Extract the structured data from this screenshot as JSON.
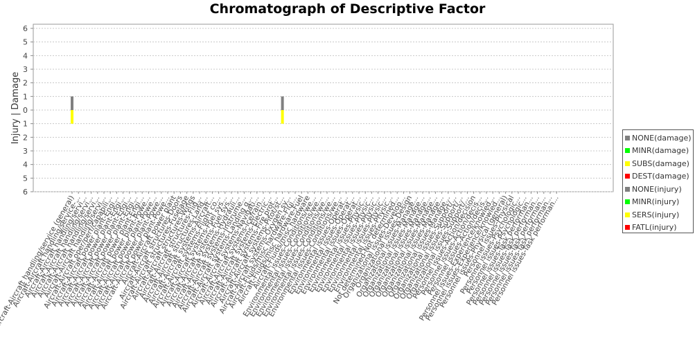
{
  "chart_data": {
    "type": "bar",
    "title": "Chromatograph of Descriptive Factor",
    "ylabel": "Injury | Damage",
    "xlabel": "",
    "ylim": [
      -6,
      6
    ],
    "yticks": [
      -6,
      -5,
      -4,
      -3,
      -2,
      -1,
      0,
      1,
      2,
      3,
      4,
      5,
      6
    ],
    "ytick_labels": [
      "6",
      "5",
      "4",
      "3",
      "2",
      "1",
      "0",
      "1",
      "2",
      "3",
      "4",
      "5",
      "6"
    ],
    "grid": true,
    "legend_position": "right",
    "categories": [
      "Aircraft-Aircraft handling/service (general)",
      "Aircraft-Aircraft handling/service-...",
      "Aircraft-Aircraft handling/servi...",
      "Aircraft-Aircraft handling/servi...",
      "Aircraft-Aircraft handling/servi...",
      "Aircraft-Aircraft handling/servi...",
      "Aircraft-Aircraft oper/perf/capabili...",
      "Aircraft-Aircraft power plant-Engi...",
      "Aircraft-Aircraft power plant-Engi...",
      "Aircraft-Aircraft power plant-Engi...",
      "Aircraft-Aircraft power plant-Engi...",
      "Aircraft-Aircraft power plant-Engi...",
      "Aircraft-Aircraft power plant-Powe...",
      "Aircraft-Aircraft power plant-Powe...",
      "Aircraft-Aircraft power plant-Powe...",
      "Aircraft-Aircraft power plant-Powe...",
      "Aircraft-Aircraft power plant",
      "Aircraft-Aircraft structures-Doors",
      "Aircraft-Aircraft structures-Fuselage",
      "Aircraft-Aircraft structures-Wings",
      "Aircraft-Aircraft structures-Flig...",
      "Aircraft-Aircraft structures-Land...",
      "Aircraft-Aircraft systems-Aircraft...",
      "Aircraft-Aircraft systems-Flight co...",
      "Aircraft-Aircraft systems-Fuel sys...",
      "Aircraft-Aircraft systems-Fuel sys...",
      "Aircraft-Aircraft systems-Hydrauli...",
      "Aircraft-Aircraft systems-Instrume...",
      "Aircraft-Aircraft systems-Landing g...",
      "Aircraft-Aircraft systems-Navigati...",
      "Aircraft-Aircraft systems-Ice/rain...",
      "Aircraft-Aircraft systems-Electric...",
      "Aircraft-Aircraft systems-Fire prot...",
      "Aircraft-Aircraft systems-Pitot/st...",
      "Aircraft-Aircraft systems-Oxygen sy...",
      "Aircraft-Fluids/misc hardware-Flui...",
      "Aircraft-Fluids/misc hardware-Fuel",
      "Aircraft-Fluids/misc hardware",
      "Environmental issues-Conditions/we...",
      "Environmental issues-Conditions/we...",
      "Environmental issues-Conditions/we...",
      "Environmental issues-Conditions/we...",
      "Environmental issues-Conditions/we...",
      "Environmental issues-Operat...",
      "Environmental issues-Operat...",
      "Environmental issues-Operat...",
      "Environmental issues-Physic...",
      "Environmental issues-Physic...",
      "Environmental issues-Physic...",
      "Environmental issues-Physic...",
      "Environmental issues-Physic...",
      "Not determined-Not determined...",
      "Organizational issues-Develop...",
      "Organizational issues-Design",
      "Organizational issues-Manage...",
      "Organizational issues-Manage...",
      "Organizational issues-Manage...",
      "Organizational issues-Manage...",
      "Organizational issues-Manage...",
      "Organizational issues-Manage...",
      "Organizational issues-Support/...",
      "Organizational issues-Support/...",
      "Organizational issues-Support/...",
      "Personnel issues-Action/decision",
      "Personnel issues-Action/decis...",
      "Personnel issues-Action/decis...",
      "Personnel issues-Experience/knowled...",
      "Personnel issues-Experience/knowled...",
      "Personnel issues-Physical (general)",
      "Personnel issues-Physical",
      "Personnel issues-Psychologic...",
      "Personnel issues-Psychologic...",
      "Personnel issues-Task performan...",
      "Personnel issues-Task performan...",
      "Personnel issues-Task performan...",
      "Personnel issues-Task performan...",
      "Personnel issues-Task performan..."
    ],
    "series": [
      {
        "name": "NONE(damage)",
        "color": "#808080",
        "side": "damage",
        "values": {
          "0": 1,
          "33": 1
        }
      },
      {
        "name": "MINR(damage)",
        "color": "#00ff00",
        "side": "damage",
        "values": {}
      },
      {
        "name": "SUBS(damage)",
        "color": "#ffff00",
        "side": "damage",
        "values": {}
      },
      {
        "name": "DEST(damage)",
        "color": "#ff0000",
        "side": "damage",
        "values": {}
      },
      {
        "name": "NONE(injury)",
        "color": "#808080",
        "side": "injury",
        "values": {}
      },
      {
        "name": "MINR(injury)",
        "color": "#00ff00",
        "side": "injury",
        "values": {}
      },
      {
        "name": "SERS(injury)",
        "color": "#ffff00",
        "side": "injury",
        "values": {
          "0": 1,
          "33": 1
        }
      },
      {
        "name": "FATL(injury)",
        "color": "#ff0000",
        "side": "injury",
        "values": {}
      }
    ]
  }
}
